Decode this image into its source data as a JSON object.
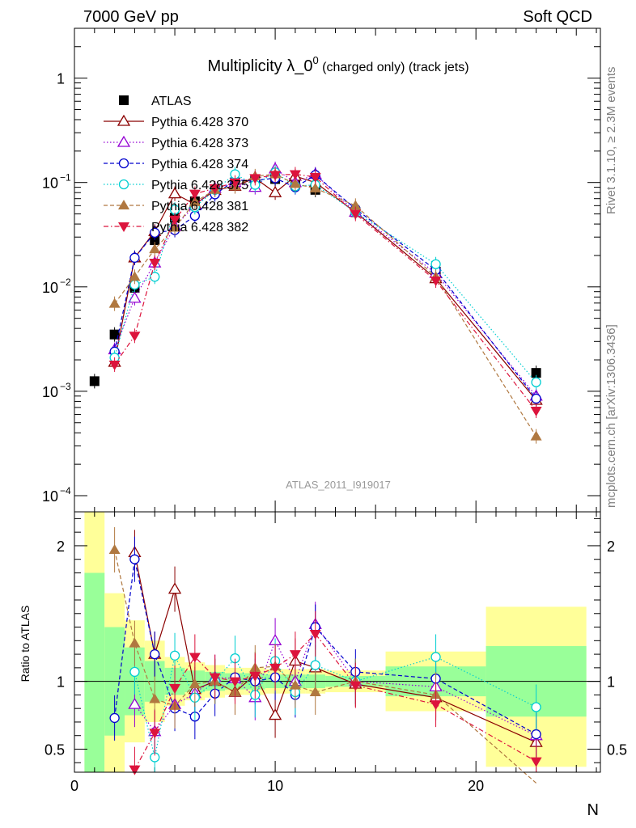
{
  "header": {
    "left": "7000 GeV pp",
    "right": "Soft QCD",
    "side_top": "Rivet 3.1.10, ≥ 2.3M events",
    "side_bottom": "mcplots.cern.ch [arXiv:1306.3436]",
    "analysis": "ATLAS_2011_I919017"
  },
  "chart_data": [
    {
      "type": "scatter",
      "title": "Multiplicity λ_0⁰ (charged only) (track jets)",
      "title_main": "Multiplicity λ_0",
      "title_sup": "0",
      "title_sub": " (charged only) (track jets)",
      "xlabel": "N",
      "ylabel": "",
      "xlim": [
        0,
        26.2
      ],
      "ylim": [
        7e-05,
        3
      ],
      "yscale": "log",
      "yticks": [
        "10^-4",
        "10^-3",
        "10^-2",
        "10^-1",
        "1"
      ],
      "xticks": [
        "0",
        "10",
        "20"
      ],
      "legend_position": "top-left",
      "series": [
        {
          "name": "ATLAS",
          "color": "#000000",
          "marker": "square",
          "x": [
            1,
            2,
            3,
            4,
            5,
            6,
            7,
            8,
            9,
            10,
            11,
            12,
            14,
            18,
            23
          ],
          "y": [
            0.00125,
            0.0035,
            0.0098,
            0.028,
            0.046,
            0.066,
            0.085,
            0.1,
            0.105,
            0.108,
            0.1,
            0.085,
            0.052,
            0.014,
            0.0015
          ]
        },
        {
          "name": "Pythia 6.428 370",
          "color": "#8b0000",
          "marker": "triangle-open",
          "line": "solid",
          "x": [
            2,
            3,
            4,
            5,
            6,
            7,
            8,
            9,
            10,
            11,
            12,
            14,
            18,
            23
          ],
          "y": [
            0.0019,
            0.019,
            0.034,
            0.078,
            0.062,
            0.084,
            0.092,
            0.11,
            0.08,
            0.115,
            0.1,
            0.052,
            0.012,
            0.00082
          ]
        },
        {
          "name": "Pythia 6.428 373",
          "color": "#9400d3",
          "marker": "triangle-open",
          "line": "dotted",
          "x": [
            2,
            3,
            4,
            5,
            6,
            7,
            8,
            9,
            10,
            11,
            12,
            14,
            18,
            23
          ],
          "y": [
            0.0025,
            0.0078,
            0.017,
            0.038,
            0.06,
            0.088,
            0.1,
            0.09,
            0.135,
            0.1,
            0.12,
            0.052,
            0.0135,
            0.0009
          ]
        },
        {
          "name": "Pythia 6.428 374",
          "color": "#0000cd",
          "marker": "circle-open",
          "line": "dashed",
          "x": [
            2,
            3,
            4,
            5,
            6,
            7,
            8,
            9,
            10,
            11,
            12,
            14,
            18,
            23
          ],
          "y": [
            0.0024,
            0.019,
            0.033,
            0.035,
            0.048,
            0.077,
            0.105,
            0.105,
            0.11,
            0.09,
            0.118,
            0.056,
            0.0145,
            0.00085
          ]
        },
        {
          "name": "Pythia 6.428 375",
          "color": "#00ced1",
          "marker": "circle-open",
          "line": "dotted",
          "x": [
            2,
            3,
            4,
            5,
            6,
            7,
            8,
            9,
            10,
            11,
            12,
            14,
            18,
            23
          ],
          "y": [
            0.0021,
            0.0105,
            0.0125,
            0.055,
            0.058,
            0.085,
            0.12,
            0.095,
            0.125,
            0.092,
            0.095,
            0.052,
            0.0165,
            0.00122
          ]
        },
        {
          "name": "Pythia 6.428 381",
          "color": "#b07840",
          "marker": "triangle-filled",
          "line": "dashed",
          "x": [
            2,
            3,
            4,
            5,
            6,
            7,
            8,
            9,
            10,
            11,
            12,
            14,
            18,
            23
          ],
          "y": [
            0.0069,
            0.0125,
            0.023,
            0.037,
            0.065,
            0.085,
            0.092,
            0.115,
            0.12,
            0.097,
            0.088,
            0.06,
            0.0125,
            0.00037
          ]
        },
        {
          "name": "Pythia 6.428 382",
          "color": "#dc143c",
          "marker": "triangle-down-filled",
          "line": "dashdot",
          "x": [
            2,
            3,
            4,
            5,
            6,
            7,
            8,
            9,
            10,
            11,
            12,
            14,
            18,
            23
          ],
          "y": [
            0.0018,
            0.0034,
            0.017,
            0.044,
            0.078,
            0.088,
            0.1,
            0.11,
            0.118,
            0.12,
            0.113,
            0.05,
            0.0115,
            0.00065
          ]
        }
      ]
    },
    {
      "type": "scatter",
      "xlabel": "N",
      "ylabel": "Ratio to ATLAS",
      "xlim": [
        0,
        26.2
      ],
      "ylim": [
        0.33,
        2.25
      ],
      "yticks": [
        "0.5",
        "1",
        "2"
      ],
      "reference_line": 1,
      "bands": [
        {
          "x0": 0.5,
          "x1": 1.5,
          "green": [
            0.2,
            1.8
          ],
          "yellow": [
            0.0,
            2.25
          ]
        },
        {
          "x0": 1.5,
          "x1": 2.5,
          "green": [
            0.6,
            1.4
          ],
          "yellow": [
            0.1,
            1.65
          ]
        },
        {
          "x0": 2.5,
          "x1": 3.5,
          "green": [
            0.75,
            1.25
          ],
          "yellow": [
            0.55,
            1.45
          ]
        },
        {
          "x0": 3.5,
          "x1": 4.5,
          "green": [
            0.85,
            1.15
          ],
          "yellow": [
            0.7,
            1.3
          ]
        },
        {
          "x0": 4.5,
          "x1": 5.5,
          "green": [
            0.9,
            1.1
          ],
          "yellow": [
            0.82,
            1.18
          ]
        },
        {
          "x0": 5.5,
          "x1": 6.5,
          "green": [
            0.92,
            1.08
          ],
          "yellow": [
            0.86,
            1.14
          ]
        },
        {
          "x0": 6.5,
          "x1": 7.5,
          "green": [
            0.93,
            1.07
          ],
          "yellow": [
            0.88,
            1.12
          ]
        },
        {
          "x0": 7.5,
          "x1": 8.5,
          "green": [
            0.94,
            1.06
          ],
          "yellow": [
            0.9,
            1.1
          ]
        },
        {
          "x0": 8.5,
          "x1": 9.5,
          "green": [
            0.94,
            1.06
          ],
          "yellow": [
            0.9,
            1.1
          ]
        },
        {
          "x0": 9.5,
          "x1": 10.5,
          "green": [
            0.95,
            1.05
          ],
          "yellow": [
            0.91,
            1.09
          ]
        },
        {
          "x0": 10.5,
          "x1": 11.5,
          "green": [
            0.95,
            1.05
          ],
          "yellow": [
            0.91,
            1.09
          ]
        },
        {
          "x0": 11.5,
          "x1": 12.5,
          "green": [
            0.95,
            1.05
          ],
          "yellow": [
            0.91,
            1.09
          ]
        },
        {
          "x0": 12.5,
          "x1": 15.5,
          "green": [
            0.96,
            1.04
          ],
          "yellow": [
            0.92,
            1.08
          ]
        },
        {
          "x0": 15.5,
          "x1": 20.5,
          "green": [
            0.89,
            1.11
          ],
          "yellow": [
            0.78,
            1.22
          ]
        },
        {
          "x0": 20.5,
          "x1": 25.5,
          "green": [
            0.74,
            1.26
          ],
          "yellow": [
            0.37,
            1.55
          ]
        }
      ],
      "series": [
        {
          "name": "Pythia 6.428 370",
          "x": [
            3,
            4,
            5,
            6,
            7,
            8,
            9,
            10,
            11,
            12,
            14,
            18,
            23
          ],
          "y": [
            1.95,
            1.2,
            1.68,
            0.94,
            1.0,
            0.92,
            1.05,
            0.75,
            1.15,
            1.1,
            0.98,
            0.88,
            0.55
          ]
        },
        {
          "name": "Pythia 6.428 373",
          "x": [
            3,
            4,
            5,
            6,
            7,
            8,
            9,
            10,
            11,
            12,
            14,
            18,
            23
          ],
          "y": [
            0.83,
            0.63,
            0.83,
            0.91,
            1.03,
            1.02,
            0.88,
            1.3,
            1.0,
            1.42,
            1.0,
            0.96,
            0.6
          ]
        },
        {
          "name": "Pythia 6.428 374",
          "x": [
            2,
            3,
            4,
            5,
            6,
            7,
            8,
            9,
            10,
            11,
            12,
            14,
            18,
            23
          ],
          "y": [
            0.73,
            1.9,
            1.2,
            0.8,
            0.74,
            0.91,
            1.03,
            1.0,
            1.03,
            0.9,
            1.4,
            1.07,
            1.02,
            0.61
          ]
        },
        {
          "name": "Pythia 6.428 375",
          "x": [
            3,
            4,
            5,
            6,
            7,
            8,
            9,
            10,
            11,
            12,
            14,
            18,
            23
          ],
          "y": [
            1.07,
            0.44,
            1.19,
            0.88,
            1.0,
            1.17,
            0.9,
            1.15,
            0.92,
            1.12,
            1.0,
            1.18,
            0.81
          ]
        },
        {
          "name": "Pythia 6.428 381",
          "x": [
            2,
            3,
            4,
            5,
            6,
            7,
            8,
            9,
            10,
            11,
            12,
            14,
            18,
            23
          ],
          "y": [
            1.97,
            1.28,
            0.87,
            0.82,
            0.98,
            1.0,
            0.92,
            1.1,
            1.11,
            0.97,
            0.92,
            1.0,
            0.9,
            0.25
          ]
        },
        {
          "name": "Pythia 6.428 382",
          "x": [
            3,
            4,
            5,
            6,
            7,
            8,
            9,
            10,
            11,
            12,
            14,
            18,
            23
          ],
          "y": [
            0.35,
            0.62,
            0.95,
            1.18,
            1.03,
            1.0,
            1.04,
            1.1,
            1.2,
            1.35,
            0.97,
            0.83,
            0.41
          ]
        }
      ]
    }
  ]
}
